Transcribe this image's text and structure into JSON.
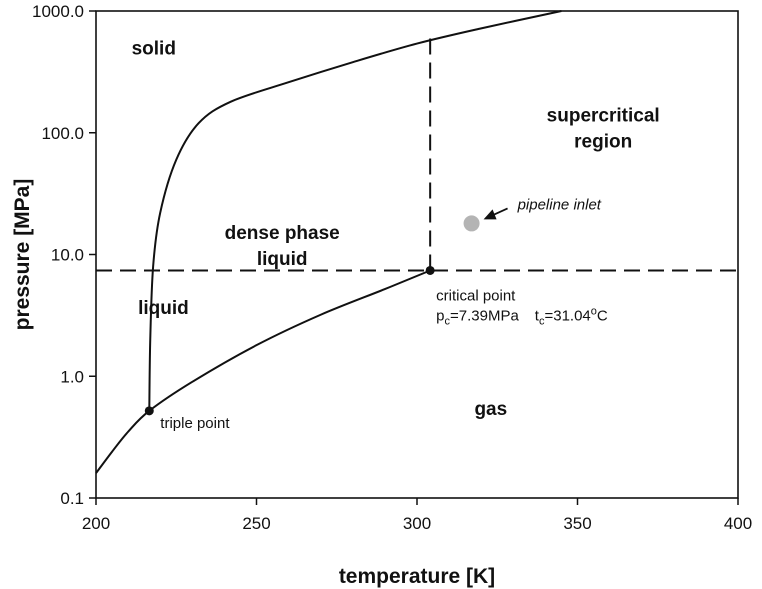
{
  "chart_data": {
    "type": "line",
    "title": "",
    "xlabel": "temperature [K]",
    "ylabel": "pressure [MPa]",
    "xlim": [
      200,
      400
    ],
    "ylim": [
      0.1,
      1000
    ],
    "yscale": "log",
    "x_ticks": [
      "200",
      "250",
      "300",
      "350",
      "400"
    ],
    "y_ticks": [
      "0.1",
      "1.0",
      "10.0",
      "100.0",
      "1000.0"
    ],
    "grid": false,
    "series": [
      {
        "key": "melting",
        "style": "solid",
        "points": [
          [
            216.6,
            0.52
          ],
          [
            216.9,
            2
          ],
          [
            217.8,
            8
          ],
          [
            220,
            22
          ],
          [
            225,
            60
          ],
          [
            232,
            120
          ],
          [
            242,
            180
          ],
          [
            260,
            260
          ],
          [
            280,
            380
          ],
          [
            300,
            540
          ],
          [
            320,
            720
          ],
          [
            345,
            1000
          ]
        ]
      },
      {
        "key": "vapor",
        "style": "solid",
        "points": [
          [
            200,
            0.16
          ],
          [
            205,
            0.24
          ],
          [
            210,
            0.35
          ],
          [
            216.6,
            0.52
          ],
          [
            230,
            0.9
          ],
          [
            250,
            1.8
          ],
          [
            270,
            3.2
          ],
          [
            290,
            5.2
          ],
          [
            304.1,
            7.39
          ]
        ]
      },
      {
        "key": "critical-pressure",
        "style": "dashed",
        "points": [
          [
            200,
            7.39
          ],
          [
            400,
            7.39
          ]
        ]
      },
      {
        "key": "critical-temperature",
        "style": "dashed",
        "points": [
          [
            304.1,
            7.39
          ],
          [
            304.1,
            600
          ]
        ]
      }
    ],
    "points": [
      {
        "key": "triple",
        "x": 216.6,
        "y": 0.52,
        "label": "triple point",
        "color": "#111111"
      },
      {
        "key": "critical",
        "x": 304.1,
        "y": 7.39,
        "label": "critical point",
        "color": "#111111"
      },
      {
        "key": "inlet",
        "x": 317,
        "y": 18,
        "label": "pipeline inlet",
        "color": "#b4b4b4"
      }
    ],
    "regions": [
      {
        "key": "solid",
        "lines": [
          "solid"
        ],
        "x": 218,
        "y": 500
      },
      {
        "key": "dense",
        "lines": [
          "dense phase",
          "liquid"
        ],
        "x": 258,
        "y": 12
      },
      {
        "key": "supercritical",
        "lines": [
          "supercritical",
          "region"
        ],
        "x": 358,
        "y": 110
      },
      {
        "key": "liquid",
        "lines": [
          "liquid"
        ],
        "x": 221,
        "y": 3.7
      },
      {
        "key": "gas",
        "lines": [
          "gas"
        ],
        "x": 323,
        "y": 0.55
      }
    ],
    "critical_values": {
      "pc_symbol": "p",
      "pc_sub": "c",
      "pc_value": "=7.39MPa",
      "tc_symbol": "t",
      "tc_sub": "c",
      "tc_value": "=31.04",
      "tc_sup": "o",
      "tc_unit": "C"
    }
  }
}
